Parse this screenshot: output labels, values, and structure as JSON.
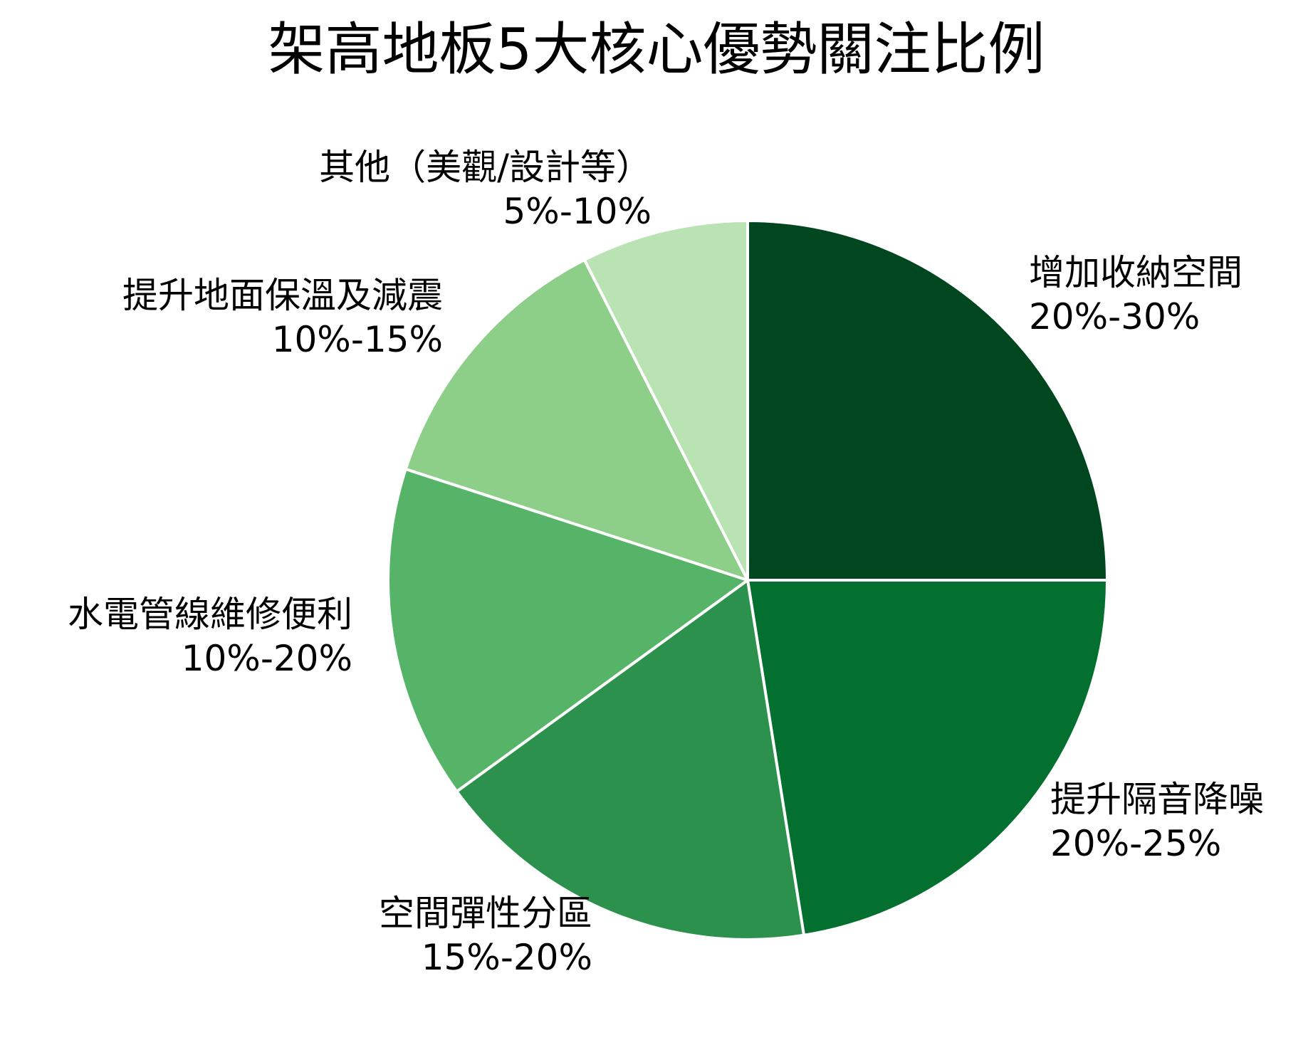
{
  "chart_data": {
    "type": "pie",
    "title": "架高地板5大核心優勢關注比例",
    "start_angle_deg": 90,
    "direction": "clockwise",
    "legend": "none",
    "slices": [
      {
        "label": "增加收納空間",
        "range_text": "20%-30%",
        "value": 25.0,
        "color": "#00471f"
      },
      {
        "label": "提升隔音降噪",
        "range_text": "20%-25%",
        "value": 22.5,
        "color": "#04702f"
      },
      {
        "label": "空間彈性分區",
        "range_text": "15%-20%",
        "value": 17.5,
        "color": "#2c914c"
      },
      {
        "label": "水電管線維修便利",
        "range_text": "10%-20%",
        "value": 15.0,
        "color": "#55b468"
      },
      {
        "label": "提升地面保溫及減震",
        "range_text": "10%-15%",
        "value": 12.5,
        "color": "#8dce88"
      },
      {
        "label": "其他（美觀/設計等）",
        "range_text": "5%-10%",
        "value": 7.5,
        "color": "#b9e3b2"
      }
    ]
  }
}
